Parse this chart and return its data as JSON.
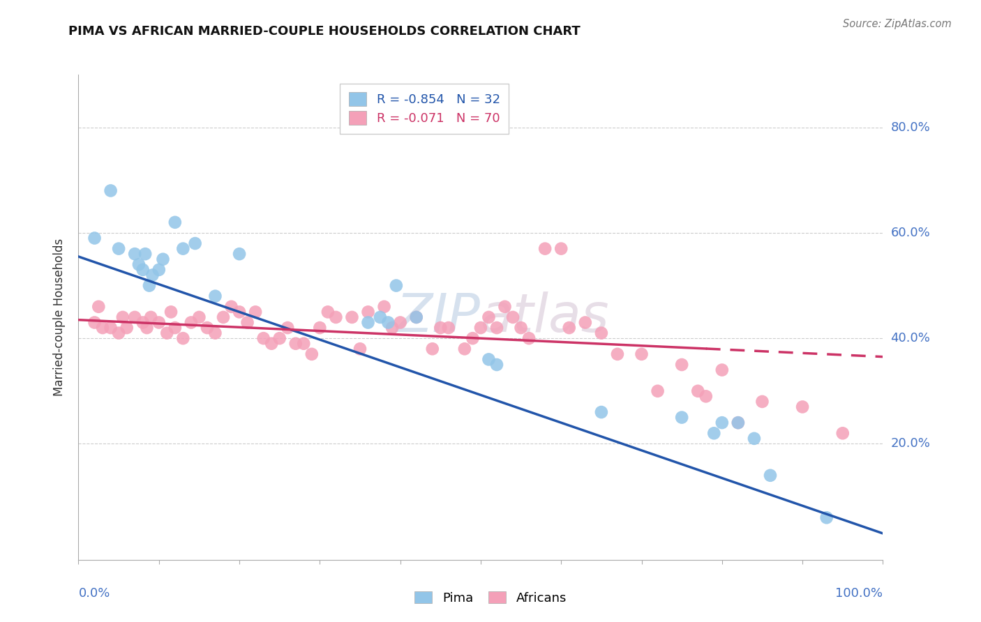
{
  "title": "PIMA VS AFRICAN MARRIED-COUPLE HOUSEHOLDS CORRELATION CHART",
  "source": "Source: ZipAtlas.com",
  "ylabel": "Married-couple Households",
  "ytick_labels": [
    "80.0%",
    "60.0%",
    "40.0%",
    "20.0%"
  ],
  "ytick_values": [
    0.8,
    0.6,
    0.4,
    0.2
  ],
  "xlim": [
    0.0,
    1.0
  ],
  "ylim": [
    -0.02,
    0.9
  ],
  "pima_color": "#92C5E8",
  "african_color": "#F4A0B8",
  "pima_line_color": "#2255AA",
  "african_line_color": "#CC3366",
  "background_color": "#ffffff",
  "pima_x": [
    0.02,
    0.04,
    0.05,
    0.07,
    0.075,
    0.08,
    0.083,
    0.088,
    0.092,
    0.1,
    0.105,
    0.12,
    0.13,
    0.145,
    0.17,
    0.2,
    0.36,
    0.375,
    0.385,
    0.395,
    0.42,
    0.51,
    0.52,
    0.65,
    0.75,
    0.79,
    0.8,
    0.82,
    0.84,
    0.86,
    0.93
  ],
  "pima_y": [
    0.59,
    0.68,
    0.57,
    0.56,
    0.54,
    0.53,
    0.56,
    0.5,
    0.52,
    0.53,
    0.55,
    0.62,
    0.57,
    0.58,
    0.48,
    0.56,
    0.43,
    0.44,
    0.43,
    0.5,
    0.44,
    0.36,
    0.35,
    0.26,
    0.25,
    0.22,
    0.24,
    0.24,
    0.21,
    0.14,
    0.06
  ],
  "african_x": [
    0.02,
    0.025,
    0.03,
    0.04,
    0.05,
    0.055,
    0.06,
    0.07,
    0.08,
    0.085,
    0.09,
    0.1,
    0.11,
    0.115,
    0.12,
    0.13,
    0.14,
    0.15,
    0.16,
    0.17,
    0.18,
    0.19,
    0.2,
    0.21,
    0.22,
    0.23,
    0.24,
    0.25,
    0.26,
    0.27,
    0.28,
    0.29,
    0.3,
    0.31,
    0.32,
    0.34,
    0.35,
    0.36,
    0.38,
    0.39,
    0.4,
    0.42,
    0.44,
    0.45,
    0.46,
    0.48,
    0.49,
    0.5,
    0.51,
    0.52,
    0.53,
    0.54,
    0.55,
    0.56,
    0.58,
    0.6,
    0.61,
    0.63,
    0.65,
    0.67,
    0.7,
    0.72,
    0.75,
    0.77,
    0.78,
    0.8,
    0.82,
    0.85,
    0.9,
    0.95
  ],
  "african_y": [
    0.43,
    0.46,
    0.42,
    0.42,
    0.41,
    0.44,
    0.42,
    0.44,
    0.43,
    0.42,
    0.44,
    0.43,
    0.41,
    0.45,
    0.42,
    0.4,
    0.43,
    0.44,
    0.42,
    0.41,
    0.44,
    0.46,
    0.45,
    0.43,
    0.45,
    0.4,
    0.39,
    0.4,
    0.42,
    0.39,
    0.39,
    0.37,
    0.42,
    0.45,
    0.44,
    0.44,
    0.38,
    0.45,
    0.46,
    0.42,
    0.43,
    0.44,
    0.38,
    0.42,
    0.42,
    0.38,
    0.4,
    0.42,
    0.44,
    0.42,
    0.46,
    0.44,
    0.42,
    0.4,
    0.57,
    0.57,
    0.42,
    0.43,
    0.41,
    0.37,
    0.37,
    0.3,
    0.35,
    0.3,
    0.29,
    0.34,
    0.24,
    0.28,
    0.27,
    0.22
  ],
  "pima_line_x0": 0.0,
  "pima_line_y0": 0.555,
  "pima_line_x1": 1.0,
  "pima_line_y1": 0.03,
  "african_line_x0": 0.0,
  "african_line_y0": 0.435,
  "african_line_x1_solid": 0.78,
  "african_line_x1": 1.0,
  "african_line_y1": 0.365
}
